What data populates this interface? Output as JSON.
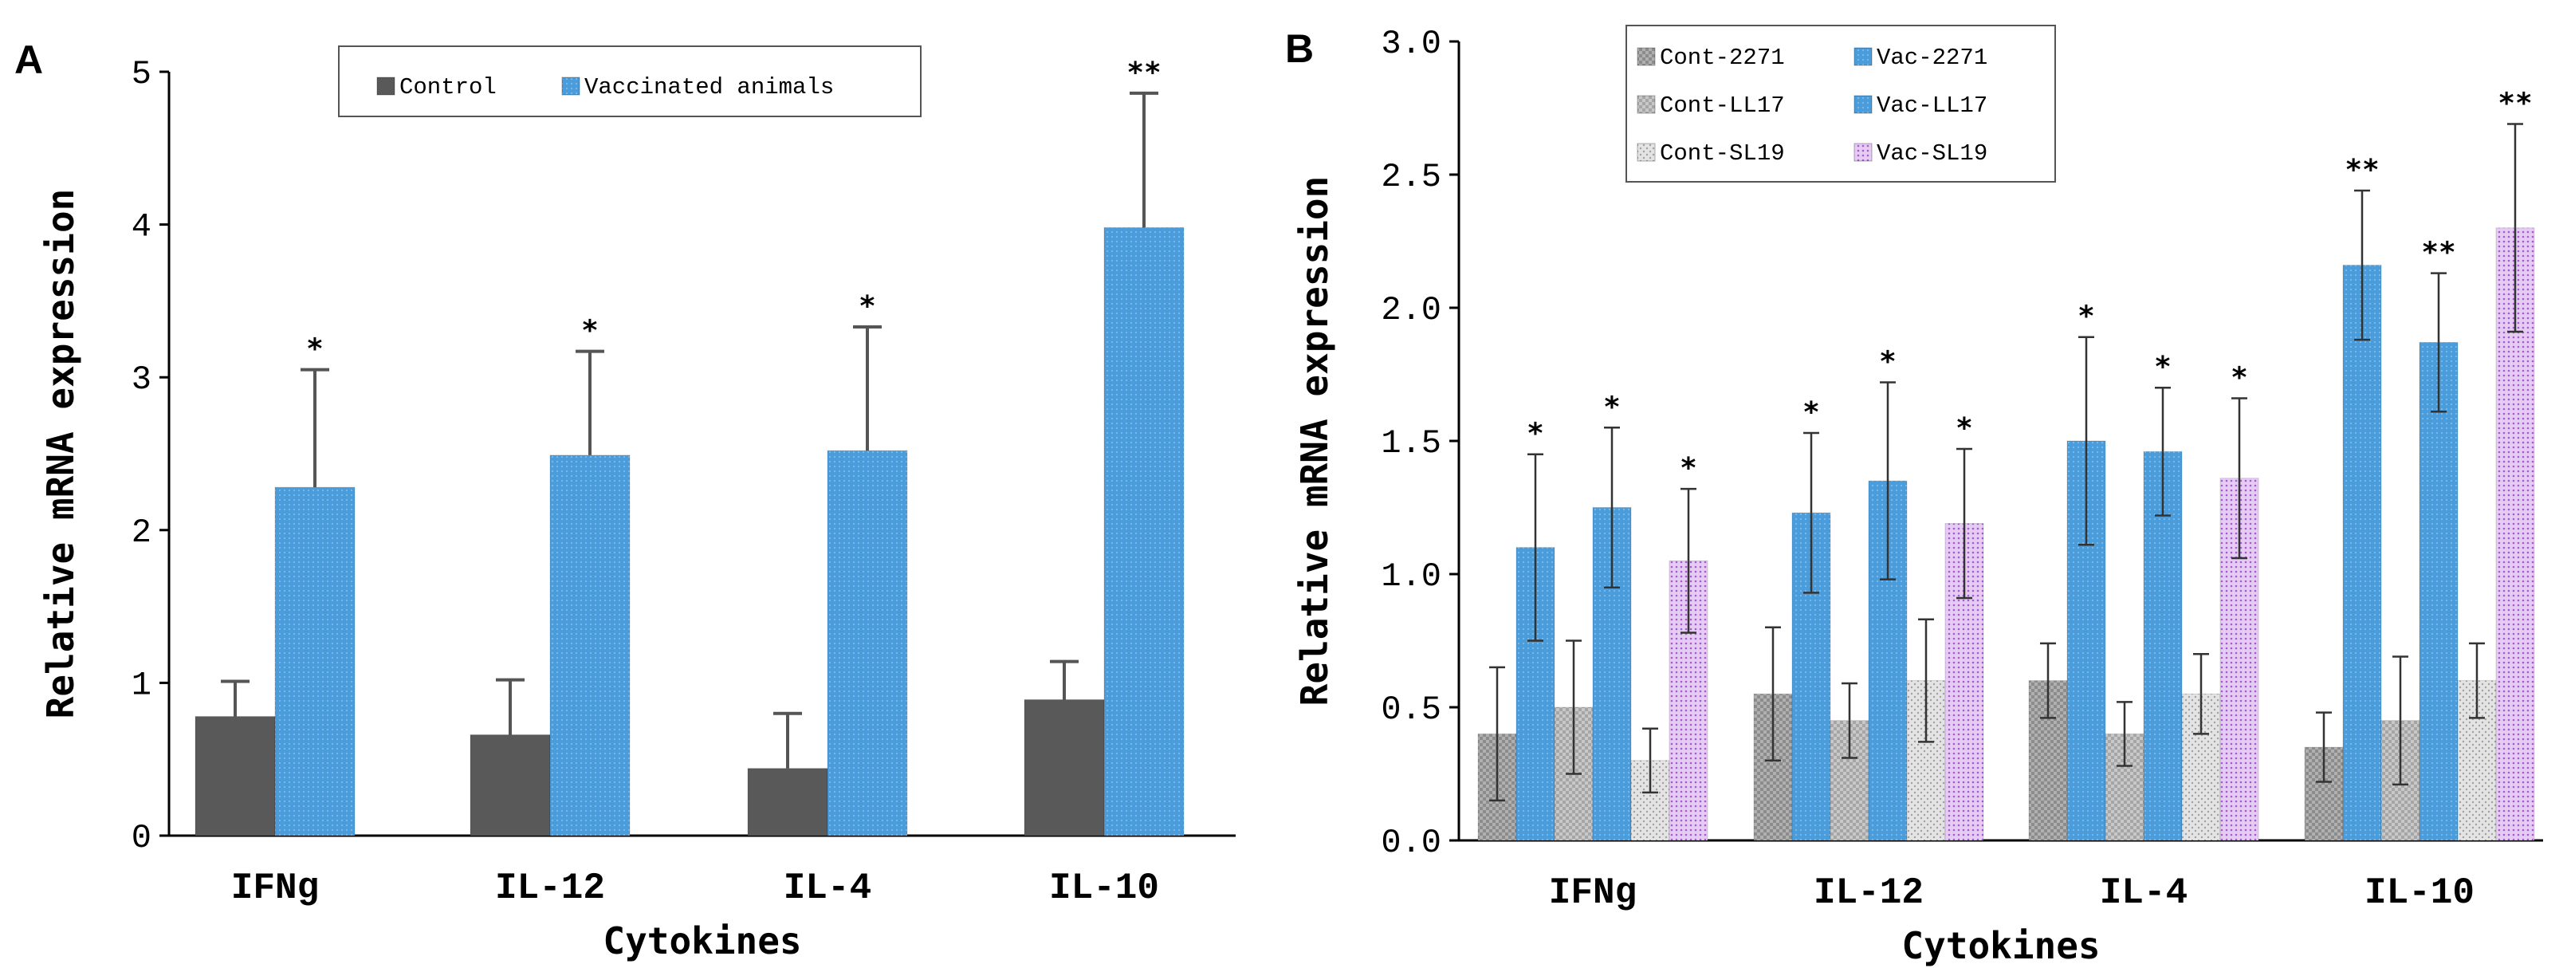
{
  "chart_data": [
    {
      "panel": "A",
      "type": "bar",
      "categories": [
        "IFNg",
        "IL-12",
        "IL-4",
        "IL-10"
      ],
      "xlabel": "Cytokines",
      "ylabel": "Relative mRNA expression",
      "ylim": [
        0,
        5
      ],
      "yticks": [
        "0",
        "1",
        "2",
        "3",
        "4",
        "5"
      ],
      "legend_position": "top-center",
      "series": [
        {
          "name": "Control",
          "values": [
            0.78,
            0.66,
            0.44,
            0.89
          ],
          "errors": [
            0.23,
            0.36,
            0.36,
            0.25
          ],
          "color": "#595959",
          "pattern": "solid",
          "sig": [
            "",
            "",
            "",
            ""
          ]
        },
        {
          "name": "Vaccinated animals",
          "values": [
            2.28,
            2.49,
            2.52,
            3.98
          ],
          "errors": [
            0.77,
            0.68,
            0.81,
            0.88
          ],
          "color": "#4A9CDB",
          "pattern": "dots",
          "sig": [
            "*",
            "*",
            "*",
            "**"
          ]
        }
      ]
    },
    {
      "panel": "B",
      "type": "bar",
      "categories": [
        "IFNg",
        "IL-12",
        "IL-4",
        "IL-10"
      ],
      "xlabel": "Cytokines",
      "ylabel": "Relative mRNA expression",
      "ylim": [
        0,
        3
      ],
      "yticks": [
        "0.0",
        "0.5",
        "1.0",
        "1.5",
        "2.0",
        "2.5",
        "3.0"
      ],
      "legend_position": "top-left",
      "series": [
        {
          "name": "Cont-2271",
          "values": [
            0.4,
            0.55,
            0.6,
            0.35
          ],
          "errors": [
            0.25,
            0.25,
            0.14,
            0.13
          ],
          "color": "#8C8C8C",
          "pattern": "checker",
          "sig": [
            "",
            "",
            "",
            ""
          ]
        },
        {
          "name": "Vac-2271",
          "values": [
            1.1,
            1.23,
            1.5,
            2.16
          ],
          "errors": [
            0.35,
            0.3,
            0.39,
            0.28
          ],
          "color": "#4A9CDB",
          "pattern": "dots",
          "sig": [
            "*",
            "*",
            "*",
            "**"
          ]
        },
        {
          "name": "Cont-LL17",
          "values": [
            0.5,
            0.45,
            0.4,
            0.45
          ],
          "errors": [
            0.25,
            0.14,
            0.12,
            0.24
          ],
          "color": "#A6A6A6",
          "pattern": "checker",
          "sig": [
            "",
            "",
            "",
            ""
          ]
        },
        {
          "name": "Vac-LL17",
          "values": [
            1.25,
            1.35,
            1.46,
            1.87
          ],
          "errors": [
            0.3,
            0.37,
            0.24,
            0.26
          ],
          "color": "#D35B14",
          "pattern": "dots",
          "sig": [
            "*",
            "*",
            "*",
            "**"
          ]
        },
        {
          "name": "Cont-SL19",
          "values": [
            0.3,
            0.6,
            0.55,
            0.6
          ],
          "errors": [
            0.12,
            0.23,
            0.15,
            0.14
          ],
          "color": "#D0D0D0",
          "pattern": "sparse",
          "sig": [
            "",
            "",
            "",
            ""
          ]
        },
        {
          "name": "Vac-SL19",
          "values": [
            1.05,
            1.19,
            1.36,
            2.3
          ],
          "errors": [
            0.27,
            0.28,
            0.3,
            0.39
          ],
          "color": "#A45BD0",
          "pattern": "lightdots",
          "sig": [
            "*",
            "*",
            "*",
            "**"
          ]
        }
      ]
    }
  ]
}
